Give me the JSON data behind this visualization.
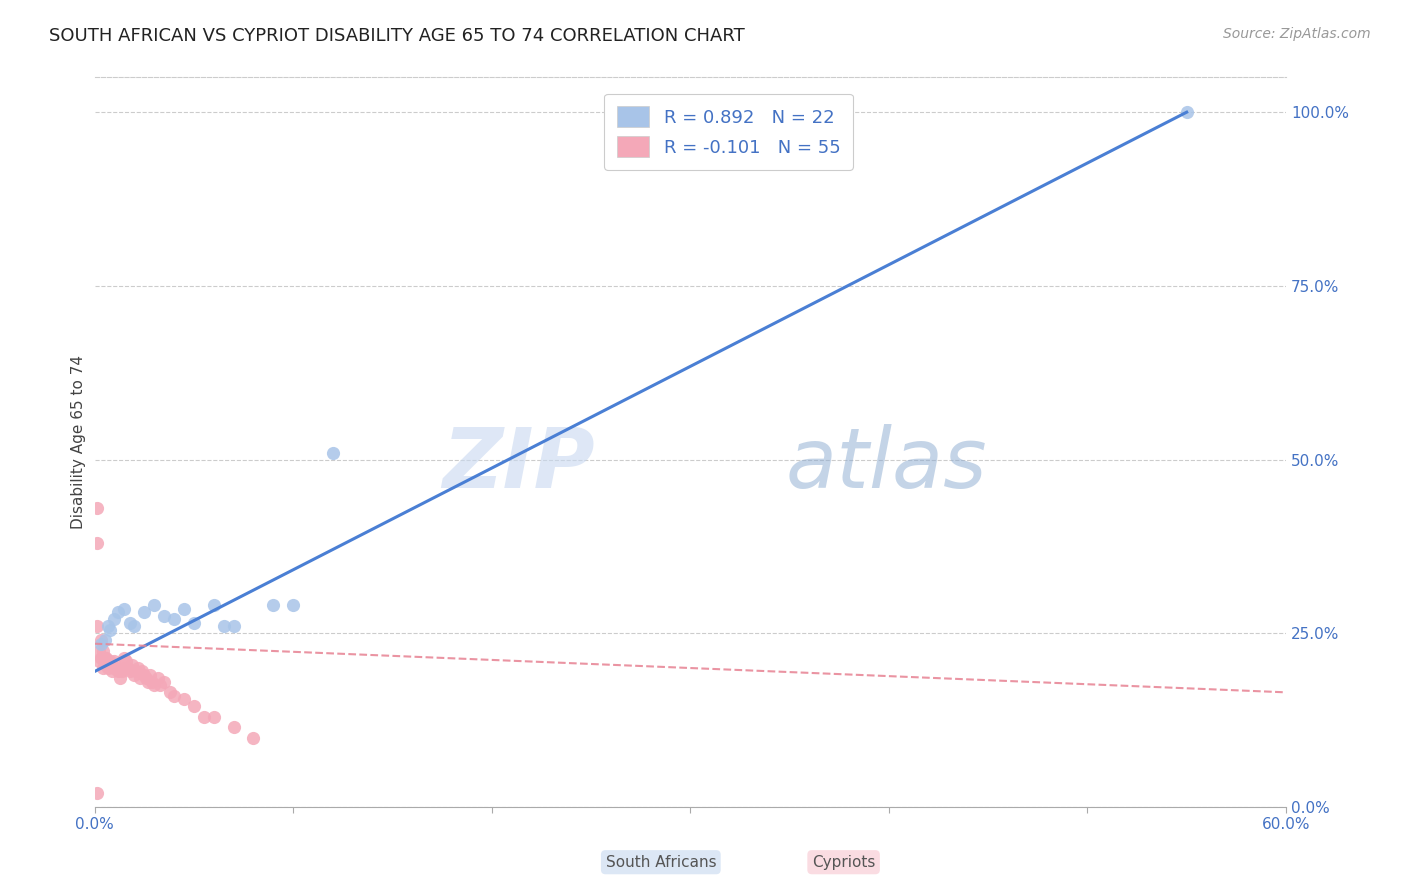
{
  "title": "SOUTH AFRICAN VS CYPRIOT DISABILITY AGE 65 TO 74 CORRELATION CHART",
  "source": "Source: ZipAtlas.com",
  "ylabel": "Disability Age 65 to 74",
  "ylabel_right_ticks": [
    "0.0%",
    "25.0%",
    "50.0%",
    "75.0%",
    "100.0%"
  ],
  "ylabel_right_vals": [
    0.0,
    0.25,
    0.5,
    0.75,
    1.0
  ],
  "xlim": [
    0.0,
    0.6
  ],
  "ylim": [
    0.0,
    1.05
  ],
  "legend_blue_r": "R = 0.892",
  "legend_blue_n": "N = 22",
  "legend_pink_r": "R = -0.101",
  "legend_pink_n": "N = 55",
  "blue_color": "#a8c4e8",
  "pink_color": "#f4a8b8",
  "blue_line_color": "#4a7fd4",
  "pink_line_color": "#e88898",
  "watermark_zip": "ZIP",
  "watermark_atlas": "atlas",
  "background_color": "#ffffff",
  "grid_color": "#cccccc",
  "title_fontsize": 13,
  "axis_label_fontsize": 11,
  "tick_fontsize": 11,
  "legend_fontsize": 13,
  "watermark_fontsize": 60,
  "source_fontsize": 10,
  "south_africans_x": [
    0.003,
    0.005,
    0.007,
    0.008,
    0.01,
    0.012,
    0.015,
    0.018,
    0.02,
    0.025,
    0.03,
    0.035,
    0.04,
    0.045,
    0.05,
    0.06,
    0.065,
    0.07,
    0.09,
    0.1,
    0.12,
    0.55
  ],
  "south_africans_y": [
    0.235,
    0.24,
    0.26,
    0.255,
    0.27,
    0.28,
    0.285,
    0.265,
    0.26,
    0.28,
    0.29,
    0.275,
    0.27,
    0.285,
    0.265,
    0.29,
    0.26,
    0.26,
    0.29,
    0.29,
    0.51,
    1.0
  ],
  "cypriots_x": [
    0.001,
    0.001,
    0.001,
    0.002,
    0.002,
    0.003,
    0.003,
    0.004,
    0.004,
    0.005,
    0.005,
    0.006,
    0.006,
    0.007,
    0.007,
    0.007,
    0.008,
    0.008,
    0.009,
    0.009,
    0.01,
    0.01,
    0.011,
    0.012,
    0.013,
    0.014,
    0.015,
    0.015,
    0.016,
    0.017,
    0.018,
    0.019,
    0.02,
    0.021,
    0.022,
    0.023,
    0.024,
    0.025,
    0.026,
    0.027,
    0.028,
    0.029,
    0.03,
    0.032,
    0.033,
    0.035,
    0.038,
    0.04,
    0.045,
    0.05,
    0.055,
    0.06,
    0.07,
    0.08,
    0.001
  ],
  "cypriots_y": [
    0.43,
    0.38,
    0.26,
    0.225,
    0.21,
    0.215,
    0.24,
    0.225,
    0.2,
    0.21,
    0.215,
    0.205,
    0.215,
    0.21,
    0.205,
    0.2,
    0.205,
    0.21,
    0.205,
    0.195,
    0.2,
    0.21,
    0.2,
    0.195,
    0.185,
    0.195,
    0.2,
    0.215,
    0.21,
    0.2,
    0.195,
    0.205,
    0.19,
    0.195,
    0.2,
    0.185,
    0.195,
    0.19,
    0.185,
    0.18,
    0.19,
    0.18,
    0.175,
    0.185,
    0.175,
    0.18,
    0.165,
    0.16,
    0.155,
    0.145,
    0.13,
    0.13,
    0.115,
    0.1,
    0.02
  ],
  "blue_line_x": [
    0.0,
    0.55
  ],
  "blue_line_y": [
    0.195,
    1.0
  ],
  "pink_line_x": [
    0.0,
    0.6
  ],
  "pink_line_y": [
    0.235,
    0.165
  ]
}
